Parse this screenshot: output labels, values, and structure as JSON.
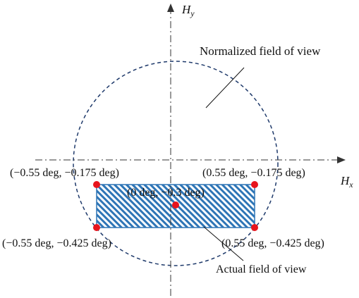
{
  "axes": {
    "x_label": "H",
    "x_sub": "x",
    "y_label": "H",
    "y_sub": "y"
  },
  "labels": {
    "normalized_fov": "Normalized field of view",
    "actual_fov": "Actual field of view"
  },
  "points": [
    {
      "id": "top-left",
      "text": "(−0.55 deg, −0.175 deg)"
    },
    {
      "id": "top-right",
      "text": "(0.55 deg, −0.175 deg)"
    },
    {
      "id": "center",
      "text": "(0 deg, −0.3 deg)"
    },
    {
      "id": "bottom-left",
      "text": "(−0.55 deg, −0.425 deg)"
    },
    {
      "id": "bottom-right",
      "text": "(0.55 deg, −0.425 deg)"
    }
  ],
  "colors": {
    "circle": "#1f3a6b",
    "rect_border": "#2e75b6",
    "hatch": "#2e75b6",
    "point": "#e8141c",
    "axis": "#333333"
  }
}
